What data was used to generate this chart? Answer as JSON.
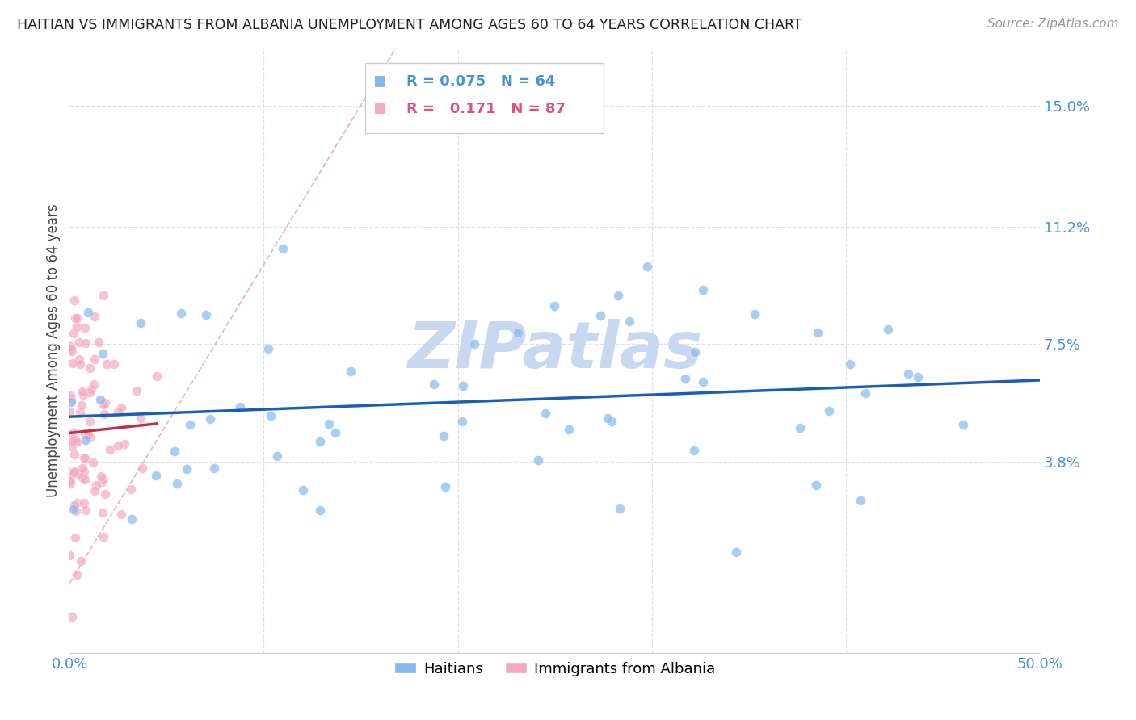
{
  "title": "HAITIAN VS IMMIGRANTS FROM ALBANIA UNEMPLOYMENT AMONG AGES 60 TO 64 YEARS CORRELATION CHART",
  "source": "Source: ZipAtlas.com",
  "ylabel": "Unemployment Among Ages 60 to 64 years",
  "ytick_labels": [
    "15.0%",
    "11.2%",
    "7.5%",
    "3.8%"
  ],
  "ytick_values": [
    0.15,
    0.112,
    0.075,
    0.038
  ],
  "xmin": 0.0,
  "xmax": 0.5,
  "ymin": -0.022,
  "ymax": 0.168,
  "R_blue": 0.075,
  "N_blue": 64,
  "R_pink": 0.171,
  "N_pink": 87,
  "blue_color": "#85b8ee",
  "pink_color": "#f5a8c0",
  "legend_blue_text_color": "#4a90d9",
  "legend_pink_text_color": "#e0507a",
  "trend_blue_color": "#1a5fb4",
  "trend_pink_color": "#c0304a",
  "diag_line_color": "#e8a0b8",
  "watermark_color": "#c8d8f0",
  "title_color": "#222222",
  "axis_label_color": "#4a90d9",
  "background_color": "#ffffff",
  "grid_color": "#e0e0e0",
  "blue_seed": 12,
  "pink_seed": 99
}
